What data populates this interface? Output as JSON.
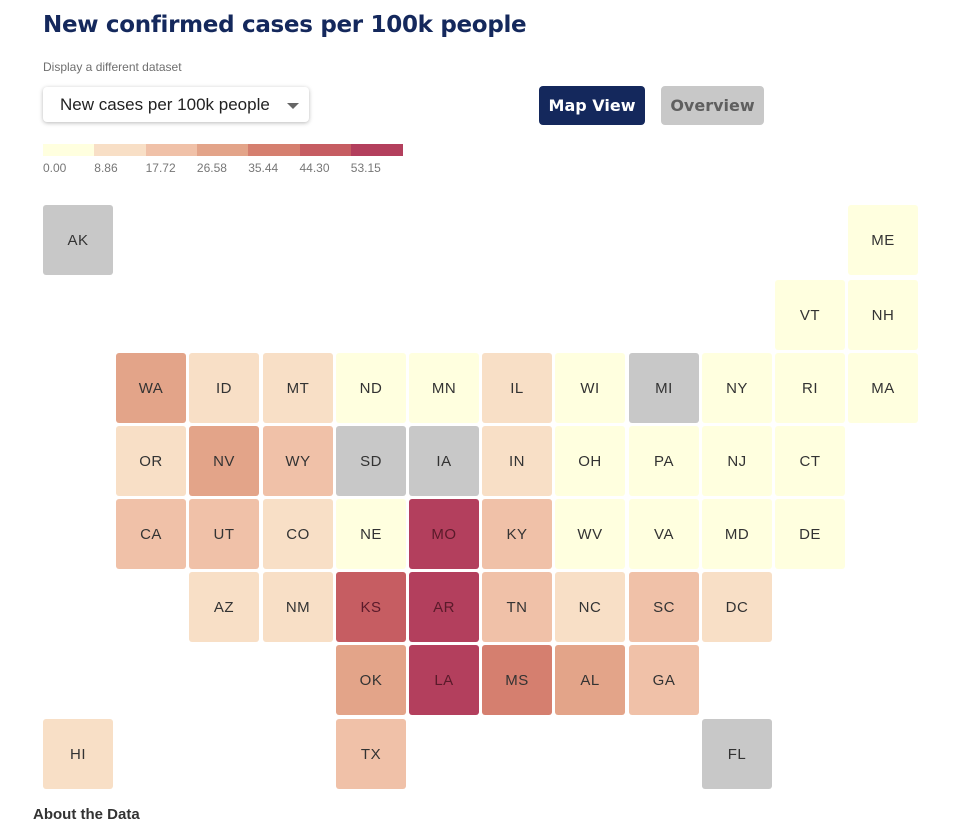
{
  "header": {
    "title": "New confirmed cases per 100k people",
    "subtitle": "Display a different dataset"
  },
  "dataset_select": {
    "value": "New cases per 100k people"
  },
  "buttons": {
    "map_view": "Map View",
    "overview": "Overview"
  },
  "legend": {
    "labels": [
      "0.00",
      "8.86",
      "17.72",
      "26.58",
      "35.44",
      "44.30",
      "53.15"
    ],
    "colors": [
      "#ffffdf",
      "#f8dfc6",
      "#f0c1a8",
      "#e3a489",
      "#d57f6f",
      "#c65d62",
      "#b33f5d"
    ]
  },
  "colors": {
    "no_data": "#c8c8c8",
    "accent": "#14285c"
  },
  "states": [
    {
      "abbr": "AK",
      "row": 0,
      "col": 0,
      "bin": null
    },
    {
      "abbr": "ME",
      "row": 0,
      "col": 11,
      "bin": 0
    },
    {
      "abbr": "VT",
      "row": 1,
      "col": 10,
      "bin": 0
    },
    {
      "abbr": "NH",
      "row": 1,
      "col": 11,
      "bin": 0
    },
    {
      "abbr": "WA",
      "row": 2,
      "col": 1,
      "bin": 3
    },
    {
      "abbr": "ID",
      "row": 2,
      "col": 2,
      "bin": 1
    },
    {
      "abbr": "MT",
      "row": 2,
      "col": 3,
      "bin": 1
    },
    {
      "abbr": "ND",
      "row": 2,
      "col": 4,
      "bin": 0
    },
    {
      "abbr": "MN",
      "row": 2,
      "col": 5,
      "bin": 0
    },
    {
      "abbr": "IL",
      "row": 2,
      "col": 6,
      "bin": 1
    },
    {
      "abbr": "WI",
      "row": 2,
      "col": 7,
      "bin": 0
    },
    {
      "abbr": "MI",
      "row": 2,
      "col": 8,
      "bin": null
    },
    {
      "abbr": "NY",
      "row": 2,
      "col": 9,
      "bin": 0
    },
    {
      "abbr": "RI",
      "row": 2,
      "col": 10,
      "bin": 0
    },
    {
      "abbr": "MA",
      "row": 2,
      "col": 11,
      "bin": 0
    },
    {
      "abbr": "OR",
      "row": 3,
      "col": 1,
      "bin": 1
    },
    {
      "abbr": "NV",
      "row": 3,
      "col": 2,
      "bin": 3
    },
    {
      "abbr": "WY",
      "row": 3,
      "col": 3,
      "bin": 2
    },
    {
      "abbr": "SD",
      "row": 3,
      "col": 4,
      "bin": null
    },
    {
      "abbr": "IA",
      "row": 3,
      "col": 5,
      "bin": null
    },
    {
      "abbr": "IN",
      "row": 3,
      "col": 6,
      "bin": 1
    },
    {
      "abbr": "OH",
      "row": 3,
      "col": 7,
      "bin": 0
    },
    {
      "abbr": "PA",
      "row": 3,
      "col": 8,
      "bin": 0
    },
    {
      "abbr": "NJ",
      "row": 3,
      "col": 9,
      "bin": 0
    },
    {
      "abbr": "CT",
      "row": 3,
      "col": 10,
      "bin": 0
    },
    {
      "abbr": "CA",
      "row": 4,
      "col": 1,
      "bin": 2
    },
    {
      "abbr": "UT",
      "row": 4,
      "col": 2,
      "bin": 2
    },
    {
      "abbr": "CO",
      "row": 4,
      "col": 3,
      "bin": 1
    },
    {
      "abbr": "NE",
      "row": 4,
      "col": 4,
      "bin": 0
    },
    {
      "abbr": "MO",
      "row": 4,
      "col": 5,
      "bin": 6
    },
    {
      "abbr": "KY",
      "row": 4,
      "col": 6,
      "bin": 2
    },
    {
      "abbr": "WV",
      "row": 4,
      "col": 7,
      "bin": 0
    },
    {
      "abbr": "VA",
      "row": 4,
      "col": 8,
      "bin": 0
    },
    {
      "abbr": "MD",
      "row": 4,
      "col": 9,
      "bin": 0
    },
    {
      "abbr": "DE",
      "row": 4,
      "col": 10,
      "bin": 0
    },
    {
      "abbr": "AZ",
      "row": 5,
      "col": 2,
      "bin": 1
    },
    {
      "abbr": "NM",
      "row": 5,
      "col": 3,
      "bin": 1
    },
    {
      "abbr": "KS",
      "row": 5,
      "col": 4,
      "bin": 5
    },
    {
      "abbr": "AR",
      "row": 5,
      "col": 5,
      "bin": 6
    },
    {
      "abbr": "TN",
      "row": 5,
      "col": 6,
      "bin": 2
    },
    {
      "abbr": "NC",
      "row": 5,
      "col": 7,
      "bin": 1
    },
    {
      "abbr": "SC",
      "row": 5,
      "col": 8,
      "bin": 2
    },
    {
      "abbr": "DC",
      "row": 5,
      "col": 9,
      "bin": 1
    },
    {
      "abbr": "OK",
      "row": 6,
      "col": 4,
      "bin": 3
    },
    {
      "abbr": "LA",
      "row": 6,
      "col": 5,
      "bin": 6
    },
    {
      "abbr": "MS",
      "row": 6,
      "col": 6,
      "bin": 4
    },
    {
      "abbr": "AL",
      "row": 6,
      "col": 7,
      "bin": 3
    },
    {
      "abbr": "GA",
      "row": 6,
      "col": 8,
      "bin": 2
    },
    {
      "abbr": "HI",
      "row": 7,
      "col": 0,
      "bin": 1
    },
    {
      "abbr": "TX",
      "row": 7,
      "col": 4,
      "bin": 2
    },
    {
      "abbr": "FL",
      "row": 7,
      "col": 9,
      "bin": null
    }
  ],
  "footer": {
    "about": "About the Data"
  }
}
